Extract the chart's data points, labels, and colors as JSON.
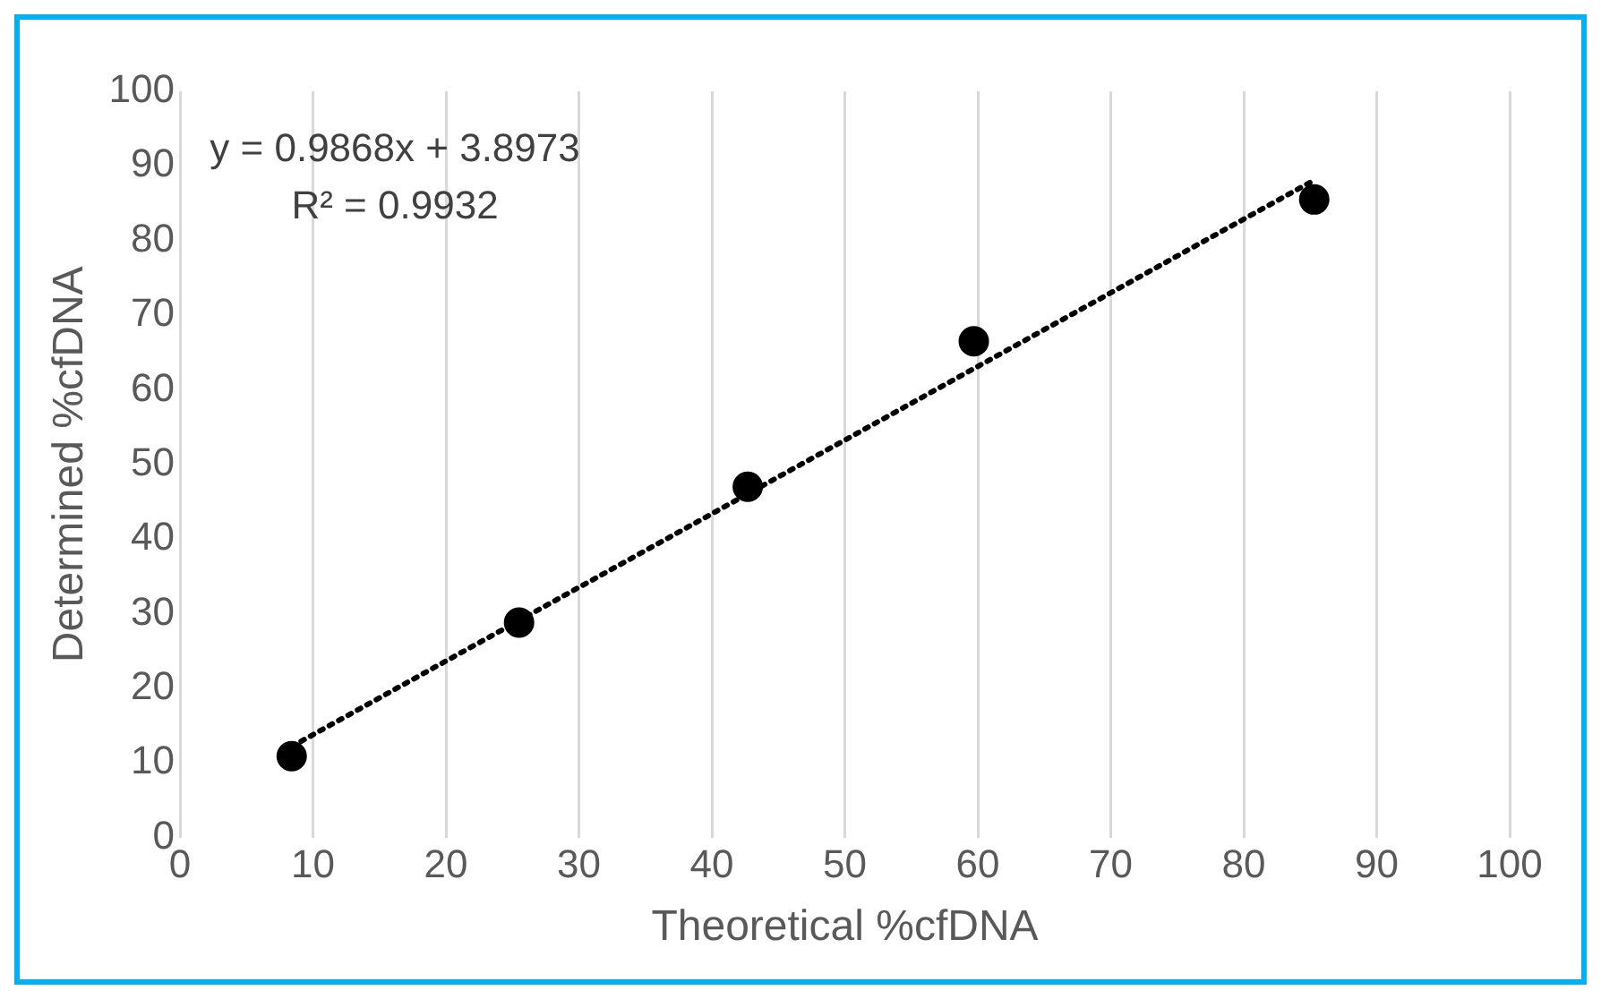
{
  "chart_data": {
    "type": "scatter",
    "xlabel": "Theoretical %cfDNA",
    "ylabel": "Determined %cfDNA",
    "xlim": [
      0,
      100
    ],
    "xticks": [
      0,
      10,
      20,
      30,
      40,
      50,
      60,
      70,
      80,
      90,
      100
    ],
    "ylim": [
      0,
      100
    ],
    "yticks": [
      0,
      10,
      20,
      30,
      40,
      50,
      60,
      70,
      80,
      90,
      100
    ],
    "grid": "x",
    "annotations": [
      "y = 0.9868x + 3.8973",
      "R² = 0.9932"
    ],
    "series": [
      {
        "color": "#000000",
        "marker": "circle",
        "x": [
          8.4,
          25.5,
          42.7,
          59.7,
          85.3
        ],
        "values": [
          10.9,
          28.8,
          47.0,
          66.5,
          85.5
        ]
      },
      {
        "type": "line",
        "line_style": "dotted",
        "color": "#000000",
        "x": [
          8.4,
          85.3
        ],
        "values": [
          12.2,
          88.1
        ]
      }
    ]
  }
}
